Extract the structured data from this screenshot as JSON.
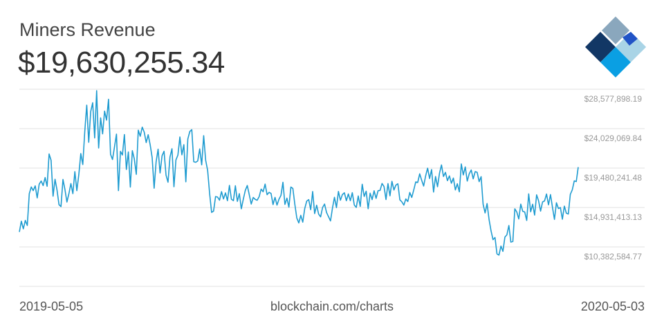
{
  "header": {
    "title": "Miners Revenue",
    "value": "$19,630,255.34"
  },
  "footer": {
    "start_date": "2019-05-05",
    "source": "blockchain.com/charts",
    "end_date": "2020-05-03"
  },
  "logo": {
    "icon": "blockchain-logo-icon",
    "colors": [
      "#123765",
      "#8aa7bd",
      "#2153c6",
      "#a9d4e6",
      "#0a9fe3"
    ]
  },
  "colors": {
    "line": "#1e9bd0",
    "grid": "#e1e1e1",
    "tick_label": "#999999"
  },
  "chart_data": {
    "type": "line",
    "title": "Miners Revenue",
    "x_start": "2019-05-05",
    "x_end": "2020-05-03",
    "ylim": [
      5833756.41,
      28577898.19
    ],
    "y_ticks": [
      10382584.77,
      14931413.13,
      19480241.48,
      24029069.84,
      28577898.19
    ],
    "y_tick_labels": [
      "$10,382,584.77",
      "$14,931,413.13",
      "$19,480,241.48",
      "$24,029,069.84",
      "$28,577,898.19"
    ],
    "grid": true,
    "series": [
      {
        "values": [
          12106000,
          13350000,
          12470000,
          13440000,
          12860000,
          16530000,
          17300000,
          16880000,
          17430000,
          16040000,
          17620000,
          17990000,
          17460000,
          18390000,
          17380000,
          21110000,
          20380000,
          16240000,
          18190000,
          16940000,
          15260000,
          15040000,
          18170000,
          17000000,
          15560000,
          16530000,
          17690000,
          16530000,
          19070000,
          16870000,
          18730000,
          21150000,
          19890000,
          23690000,
          26740000,
          22460000,
          26010000,
          27020000,
          22960000,
          28410000,
          21800000,
          25270000,
          23430000,
          26050000,
          25010000,
          27420000,
          21070000,
          20470000,
          21910000,
          23400000,
          16880000,
          21410000,
          20990000,
          23350000,
          19320000,
          21340000,
          17290000,
          21490000,
          20540000,
          18760000,
          23860000,
          23150000,
          24200000,
          23630000,
          22430000,
          23330000,
          22170000,
          20700000,
          17160000,
          20200000,
          21660000,
          18920000,
          20900000,
          21420000,
          18670000,
          17850000,
          20760000,
          21710000,
          17330000,
          20420000,
          20980000,
          23070000,
          21010000,
          22180000,
          17900000,
          22840000,
          23700000,
          23910000,
          20210000,
          20150000,
          20300000,
          21690000,
          19850000,
          23220000,
          20390000,
          19210000,
          16550000,
          14370000,
          14520000,
          16190000,
          16140000,
          15770000,
          16760000,
          15920000,
          16620000,
          15720000,
          17480000,
          15890000,
          15720000,
          17440000,
          15640000,
          16530000,
          14780000,
          15890000,
          16900000,
          17470000,
          16410000,
          15330000,
          16090000,
          15870000,
          15770000,
          16190000,
          17050000,
          16750000,
          17630000,
          16410000,
          16680000,
          16550000,
          15270000,
          16100000,
          15210000,
          15890000,
          16330000,
          17840000,
          15290000,
          16010000,
          14970000,
          17290000,
          17130000,
          15300000,
          13720000,
          13150000,
          14030000,
          13240000,
          14820000,
          15670000,
          15840000,
          14680000,
          16770000,
          14230000,
          15200000,
          14180000,
          13850000,
          14930000,
          15330000,
          14360000,
          13870000,
          13380000,
          14880000,
          16110000,
          14920000,
          16780000,
          15770000,
          16430000,
          16630000,
          15720000,
          16500000,
          15720000,
          16640000,
          15220000,
          14940000,
          16260000,
          15060000,
          17610000,
          16210000,
          16810000,
          14790000,
          16580000,
          15840000,
          16860000,
          15980000,
          16870000,
          16900000,
          17700000,
          17350000,
          15850000,
          17690000,
          16280000,
          17950000,
          16950000,
          17520000,
          17670000,
          15810000,
          15580000,
          15210000,
          15920000,
          15620000,
          16660000,
          16090000,
          16950000,
          17880000,
          17820000,
          18820000,
          18070000,
          17410000,
          18580000,
          19470000,
          18280000,
          19310000,
          16710000,
          18510000,
          17330000,
          18890000,
          19840000,
          18510000,
          18980000,
          18030000,
          18580000,
          17730000,
          18330000,
          16960000,
          17670000,
          16740000,
          19950000,
          18690000,
          19610000,
          17980000,
          18820000,
          19260000,
          18240000,
          19070000,
          18990000,
          17920000,
          18490000,
          15310000,
          14310000,
          15390000,
          13560000,
          12240000,
          11220000,
          11470000,
          9580000,
          9440000,
          10480000,
          9870000,
          11520000,
          11780000,
          12850000,
          10940000,
          11010000,
          14780000,
          14410000,
          13610000,
          15320000,
          14490000,
          14410000,
          13440000,
          16500000,
          14440000,
          15310000,
          14060000,
          16390000,
          15690000,
          14520000,
          15570000,
          15690000,
          16490000,
          15240000,
          16420000,
          14950000,
          13560000,
          15480000,
          14810000,
          14920000,
          13580000,
          15090000,
          14270000,
          14180000,
          16440000,
          16970000,
          18000000,
          17920000,
          19590000
        ]
      }
    ]
  }
}
